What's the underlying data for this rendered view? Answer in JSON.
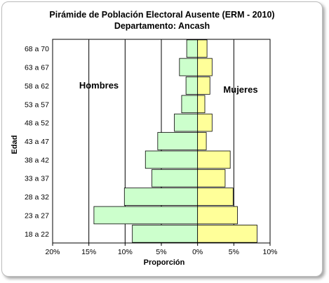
{
  "chart_data": {
    "type": "bar",
    "orientation": "horizontal-population-pyramid",
    "title": "Pirámide de Población Electoral Ausente (ERM - 2010)",
    "subtitle": "Departamento: Ancash",
    "xlabel": "Proporción",
    "ylabel": "Edad",
    "xlim": [
      -20,
      10
    ],
    "x_ticks": [
      "20%",
      "15%",
      "10%",
      "5%",
      "0%",
      "5%",
      "10%"
    ],
    "grid": "vertical",
    "categories": [
      "18 a 22",
      "23 a 27",
      "28 a 32",
      "33 a 37",
      "38 a 42",
      "43 a 47",
      "48 a 52",
      "53 a 57",
      "58 a 62",
      "63 a 67",
      "68 a 70"
    ],
    "series": [
      {
        "name": "Hombres",
        "color": "#ccffcc",
        "values": [
          9.0,
          14.3,
          10.1,
          6.3,
          7.2,
          5.5,
          3.2,
          2.2,
          1.6,
          2.5,
          1.5
        ]
      },
      {
        "name": "Mujeres",
        "color": "#ffff99",
        "values": [
          8.2,
          5.5,
          4.9,
          3.8,
          4.5,
          1.2,
          2.0,
          1.0,
          1.7,
          2.0,
          1.3
        ]
      }
    ],
    "plot_background": "#ffffff",
    "bar_stroke": "#000000"
  }
}
